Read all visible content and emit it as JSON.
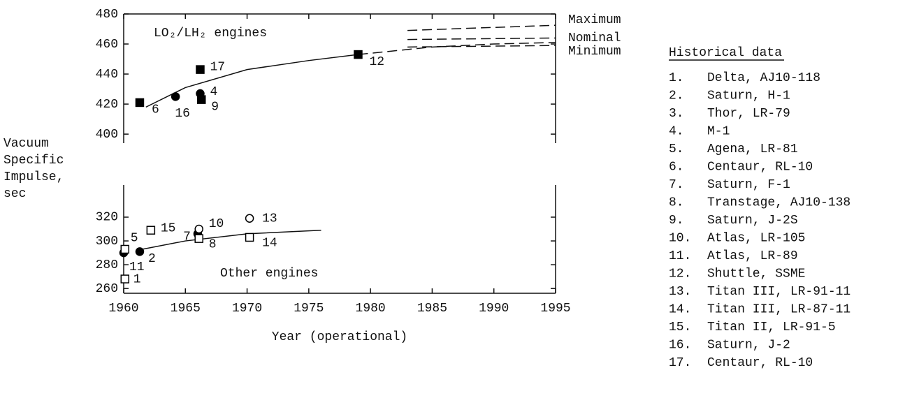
{
  "chart_data": [
    {
      "type": "scatter",
      "annotation": "LO₂/LH₂ engines",
      "xlim": [
        1960,
        1995
      ],
      "ylim": [
        394,
        480
      ],
      "yticks": [
        400,
        420,
        440,
        460,
        480
      ],
      "series": [
        {
          "name": "filled squares",
          "marker": "square",
          "filled": true,
          "color": "#000",
          "x": [
            1961.3,
            1966.2,
            1966.3,
            1979.0
          ],
          "values": [
            421,
            443,
            423,
            453
          ],
          "labels": [
            "6",
            "17",
            "9",
            "12"
          ]
        },
        {
          "name": "filled circles",
          "marker": "circle",
          "filled": true,
          "color": "#000",
          "x": [
            1964.2,
            1966.2
          ],
          "values": [
            425,
            427
          ],
          "labels": [
            "16",
            "4"
          ]
        }
      ],
      "curves": [
        {
          "dashed": false,
          "x": [
            1961.8,
            1965,
            1970,
            1975,
            1979
          ],
          "values": [
            418,
            431,
            443,
            449,
            453
          ]
        },
        {
          "dashed": true,
          "x": [
            1979,
            1985,
            1990,
            1995
          ],
          "values": [
            453,
            458,
            460,
            461
          ]
        },
        {
          "name": "Maximum",
          "dashed": true,
          "x": [
            1983,
            1995
          ],
          "values": [
            469,
            472.5
          ]
        },
        {
          "name": "Nominal",
          "dashed": true,
          "x": [
            1983,
            1995
          ],
          "values": [
            463,
            464
          ]
        },
        {
          "name": "Minimum",
          "dashed": true,
          "x": [
            1983,
            1995
          ],
          "values": [
            458,
            459
          ]
        }
      ]
    },
    {
      "type": "scatter",
      "annotation": "Other engines",
      "xlabel": "Year (operational)",
      "ylabel": [
        "Vacuum",
        "Specific",
        "Impulse,",
        "sec"
      ],
      "xlim": [
        1960,
        1995
      ],
      "xticks": [
        1960,
        1965,
        1970,
        1975,
        1980,
        1985,
        1990,
        1995
      ],
      "ylim": [
        256,
        347
      ],
      "yticks": [
        260,
        280,
        300,
        320
      ],
      "series": [
        {
          "name": "filled circles",
          "marker": "circle",
          "filled": true,
          "color": "#000",
          "x": [
            1960.0,
            1961.3,
            1966.0
          ],
          "values": [
            290,
            291,
            306
          ],
          "labels": [
            "11",
            "2",
            "7"
          ]
        },
        {
          "name": "open squares",
          "marker": "square",
          "filled": false,
          "color": "#000",
          "x": [
            1960.1,
            1960.1,
            1962.2,
            1966.1,
            1970.2
          ],
          "values": [
            293,
            268,
            309,
            302,
            303
          ],
          "labels": [
            "5",
            "1",
            "15",
            "8",
            "14"
          ]
        },
        {
          "name": "open circles",
          "marker": "circle",
          "filled": false,
          "color": "#000",
          "x": [
            1966.1,
            1970.2
          ],
          "values": [
            310,
            319
          ],
          "labels": [
            "10",
            "13"
          ]
        }
      ],
      "curves": [
        {
          "dashed": false,
          "x": [
            1961.5,
            1965,
            1970,
            1976
          ],
          "values": [
            293,
            300,
            306,
            309
          ]
        }
      ]
    }
  ],
  "historical": {
    "title": "Historical data",
    "items": [
      {
        "number": "1.",
        "name": "Delta, AJ10-118"
      },
      {
        "number": "2.",
        "name": "Saturn, H-1"
      },
      {
        "number": "3.",
        "name": "Thor, LR-79"
      },
      {
        "number": "4.",
        "name": "M-1"
      },
      {
        "number": "5.",
        "name": "Agena, LR-81"
      },
      {
        "number": "6.",
        "name": "Centaur, RL-10"
      },
      {
        "number": "7.",
        "name": "Saturn, F-1"
      },
      {
        "number": "8.",
        "name": "Transtage, AJ10-138"
      },
      {
        "number": "9.",
        "name": "Saturn, J-2S"
      },
      {
        "number": "10.",
        "name": "Atlas, LR-105"
      },
      {
        "number": "11.",
        "name": "Atlas, LR-89"
      },
      {
        "number": "12.",
        "name": "Shuttle, SSME"
      },
      {
        "number": "13.",
        "name": "Titan III, LR-91-11"
      },
      {
        "number": "14.",
        "name": "Titan III, LR-87-11"
      },
      {
        "number": "15.",
        "name": "Titan II, LR-91-5"
      },
      {
        "number": "16.",
        "name": "Saturn, J-2"
      },
      {
        "number": "17.",
        "name": "Centaur, RL-10"
      }
    ]
  }
}
